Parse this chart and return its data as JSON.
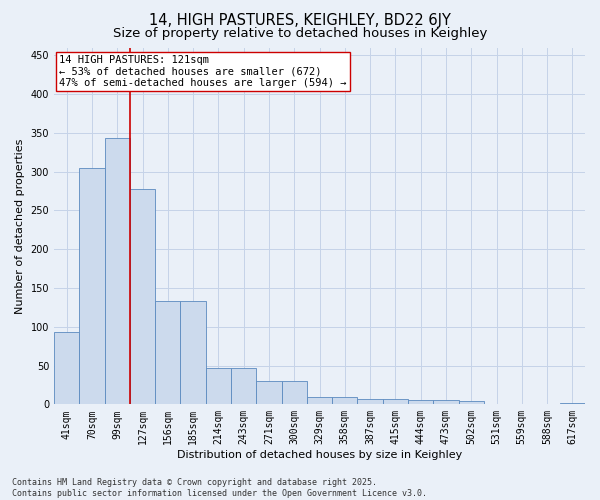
{
  "title": "14, HIGH PASTURES, KEIGHLEY, BD22 6JY",
  "subtitle": "Size of property relative to detached houses in Keighley",
  "xlabel": "Distribution of detached houses by size in Keighley",
  "ylabel": "Number of detached properties",
  "categories": [
    "41sqm",
    "70sqm",
    "99sqm",
    "127sqm",
    "156sqm",
    "185sqm",
    "214sqm",
    "243sqm",
    "271sqm",
    "300sqm",
    "329sqm",
    "358sqm",
    "387sqm",
    "415sqm",
    "444sqm",
    "473sqm",
    "502sqm",
    "531sqm",
    "559sqm",
    "588sqm",
    "617sqm"
  ],
  "values": [
    93,
    305,
    343,
    278,
    133,
    133,
    47,
    47,
    30,
    30,
    9,
    9,
    7,
    7,
    6,
    6,
    4,
    1,
    1,
    1,
    2
  ],
  "bar_color": "#ccdaed",
  "bar_edge_color": "#5b8abf",
  "redline_x": 2.5,
  "annotation_line1": "14 HIGH PASTURES: 121sqm",
  "annotation_line2": "← 53% of detached houses are smaller (672)",
  "annotation_line3": "47% of semi-detached houses are larger (594) →",
  "annotation_box_facecolor": "#ffffff",
  "annotation_box_edgecolor": "#cc0000",
  "redline_color": "#cc0000",
  "grid_color": "#c5d3e8",
  "background_color": "#eaf0f8",
  "ylim": [
    0,
    460
  ],
  "yticks": [
    0,
    50,
    100,
    150,
    200,
    250,
    300,
    350,
    400,
    450
  ],
  "footer_line1": "Contains HM Land Registry data © Crown copyright and database right 2025.",
  "footer_line2": "Contains public sector information licensed under the Open Government Licence v3.0.",
  "title_fontsize": 10.5,
  "subtitle_fontsize": 9.5,
  "axis_label_fontsize": 8,
  "tick_fontsize": 7,
  "footer_fontsize": 6,
  "annotation_fontsize": 7.5
}
